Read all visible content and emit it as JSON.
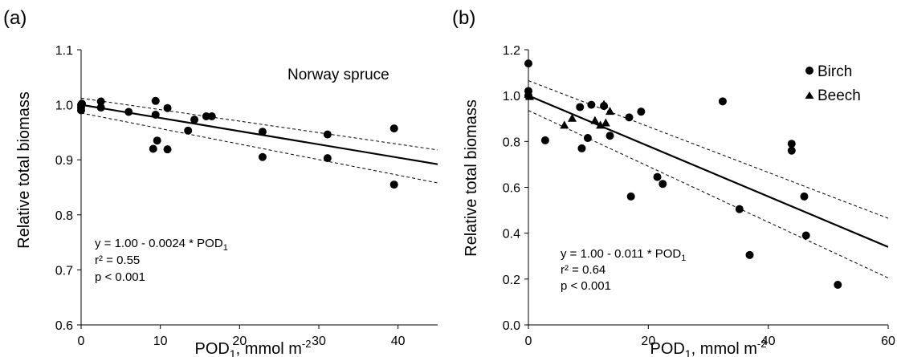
{
  "chart_data": [
    {
      "panel_label": "(a)",
      "type": "scatter",
      "title": "",
      "legend_text": "Norway spruce",
      "xlabel": {
        "text": "POD",
        "sub": "1",
        "tail": ", mmol m",
        "sup": "-2"
      },
      "ylabel": "Relative total biomass",
      "xlim": [
        0,
        45
      ],
      "ylim": [
        0.6,
        1.1
      ],
      "xticks": [
        0,
        10,
        20,
        30,
        40
      ],
      "yticks": [
        0.6,
        0.7,
        0.8,
        0.9,
        1.0,
        1.1
      ],
      "ytick_decimals": 1,
      "grid": false,
      "series": [
        {
          "marker": "circle",
          "points": [
            [
              0,
              1.0
            ],
            [
              0,
              0.995
            ],
            [
              0,
              0.99
            ],
            [
              0.1,
              1.002
            ],
            [
              2.5,
              1.006
            ],
            [
              2.5,
              0.995
            ],
            [
              6,
              0.987
            ],
            [
              9.1,
              0.92
            ],
            [
              9.4,
              1.007
            ],
            [
              9.4,
              0.982
            ],
            [
              9.6,
              0.935
            ],
            [
              10.9,
              0.994
            ],
            [
              10.9,
              0.919
            ],
            [
              13.5,
              0.953
            ],
            [
              14.3,
              0.973
            ],
            [
              15.8,
              0.979
            ],
            [
              16.5,
              0.979
            ],
            [
              22.9,
              0.951
            ],
            [
              22.9,
              0.905
            ],
            [
              31.1,
              0.946
            ],
            [
              31.1,
              0.903
            ],
            [
              39.5,
              0.957
            ],
            [
              39.5,
              0.855
            ]
          ]
        }
      ],
      "fit_line": {
        "intercept": 1.0,
        "slope": -0.0024
      },
      "ci_upper": [
        [
          0,
          1.012
        ],
        [
          45,
          0.918
        ]
      ],
      "ci_lower": [
        [
          0,
          0.985
        ],
        [
          45,
          0.858
        ]
      ],
      "annotation": {
        "eq_main": "y = 1.00 - 0.0024 * POD",
        "eq_sub": "1",
        "r2": "r² = 0.55",
        "p": "p < 0.001"
      }
    },
    {
      "panel_label": "(b)",
      "type": "scatter",
      "title": "",
      "xlabel": {
        "text": "POD",
        "sub": "1",
        "tail": ", mmol m",
        "sup": "-2"
      },
      "ylabel": "Relative total biomass",
      "xlim": [
        0,
        60
      ],
      "ylim": [
        0.0,
        1.2
      ],
      "xticks": [
        0,
        20,
        40,
        60
      ],
      "yticks": [
        0.0,
        0.2,
        0.4,
        0.6,
        0.8,
        1.0,
        1.2
      ],
      "ytick_decimals": 1,
      "grid": false,
      "legend_position": "top-right",
      "series": [
        {
          "name": "Birch",
          "marker": "circle",
          "points": [
            [
              0,
              1.14
            ],
            [
              0,
              1.02
            ],
            [
              0,
              1.0
            ],
            [
              2.8,
              0.805
            ],
            [
              8.6,
              0.95
            ],
            [
              8.9,
              0.77
            ],
            [
              9.9,
              0.815
            ],
            [
              10.5,
              0.96
            ],
            [
              12.6,
              0.955
            ],
            [
              13.6,
              0.825
            ],
            [
              16.8,
              0.905
            ],
            [
              17.1,
              0.56
            ],
            [
              18.8,
              0.93
            ],
            [
              21.5,
              0.645
            ],
            [
              22.4,
              0.615
            ],
            [
              32.4,
              0.975
            ],
            [
              35.2,
              0.505
            ],
            [
              36.9,
              0.305
            ],
            [
              43.9,
              0.79
            ],
            [
              43.9,
              0.76
            ],
            [
              46,
              0.56
            ],
            [
              46.3,
              0.39
            ],
            [
              51.6,
              0.175
            ]
          ]
        },
        {
          "name": "Beech",
          "marker": "triangle",
          "points": [
            [
              0,
              1.005
            ],
            [
              0.2,
              0.995
            ],
            [
              6,
              0.87
            ],
            [
              7.3,
              0.9
            ],
            [
              11.1,
              0.89
            ],
            [
              12,
              0.87
            ],
            [
              12.6,
              0.96
            ],
            [
              12.9,
              0.88
            ],
            [
              13.6,
              0.93
            ]
          ]
        }
      ],
      "fit_line": {
        "intercept": 1.0,
        "slope": -0.011
      },
      "ci_upper": [
        [
          0,
          1.065
        ],
        [
          60,
          0.465
        ]
      ],
      "ci_lower": [
        [
          0,
          0.935
        ],
        [
          60,
          0.205
        ]
      ],
      "annotation": {
        "eq_main": "y = 1.00 - 0.011 * POD",
        "eq_sub": "1",
        "r2": "r² = 0.64",
        "p": "p < 0.001"
      }
    }
  ]
}
